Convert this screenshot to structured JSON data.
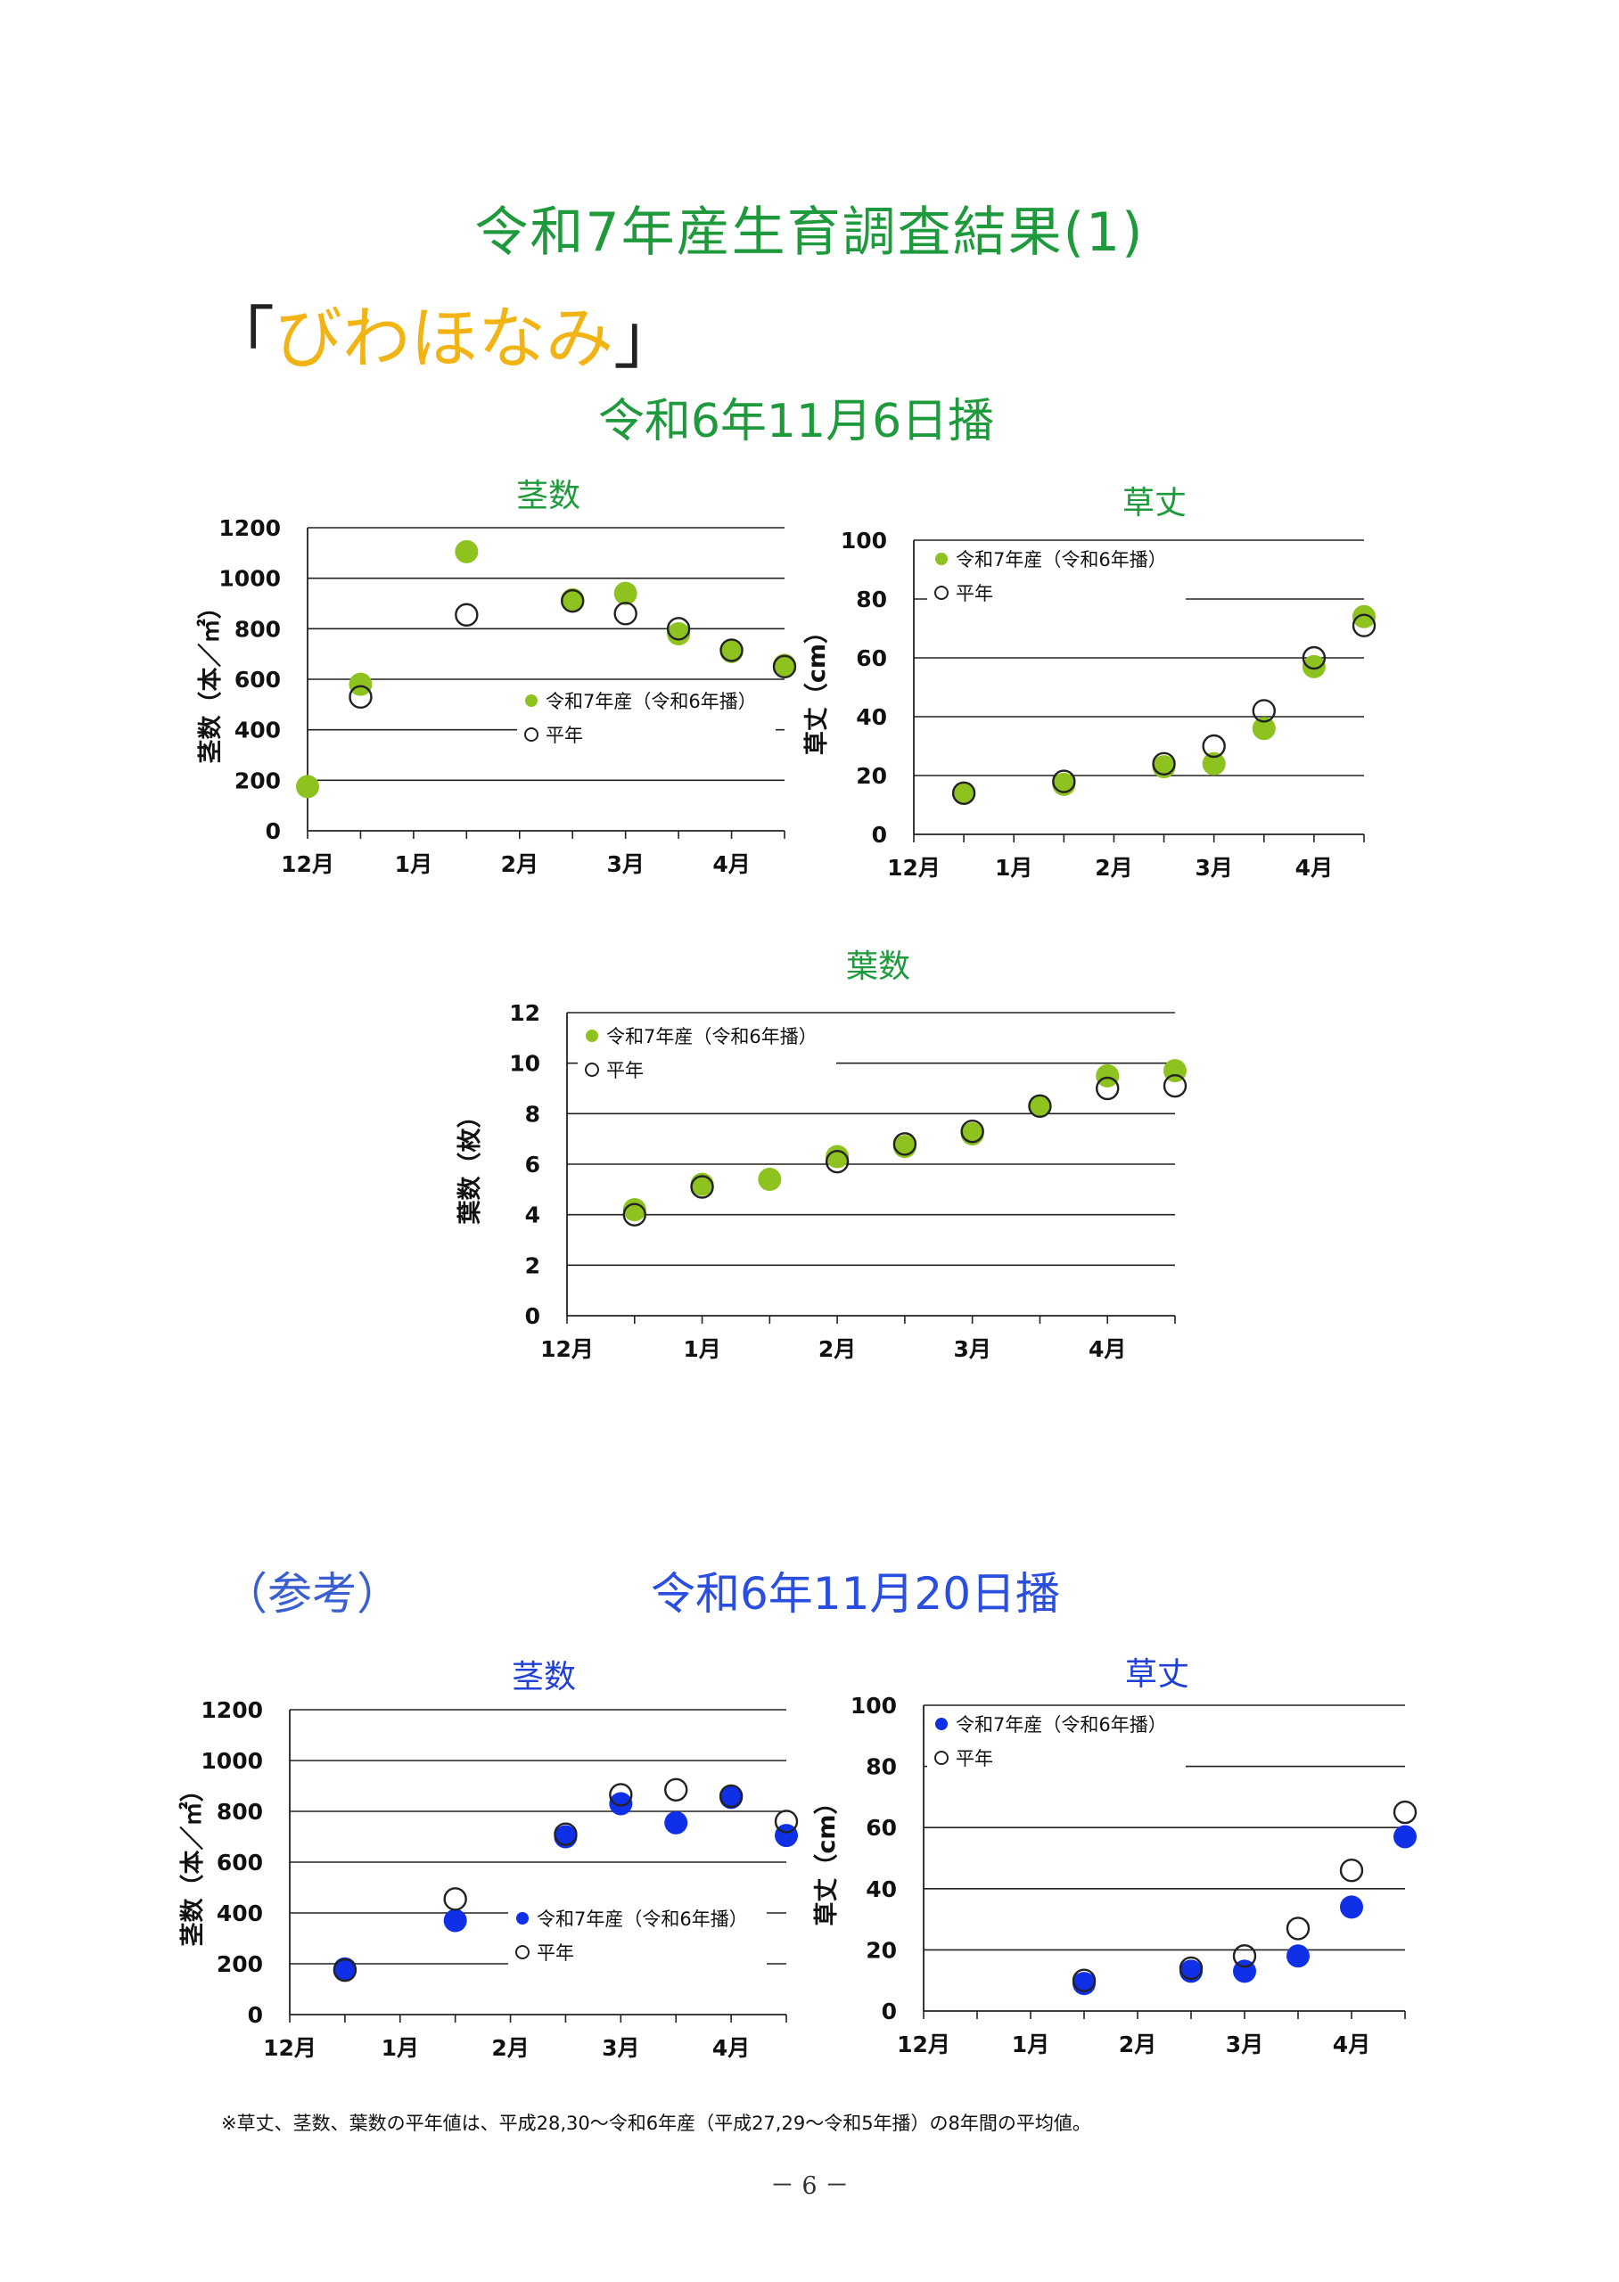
{
  "page": {
    "title": "令和7年産生育調査結果(1)",
    "variety_open": "「",
    "variety_name": "びわほなみ",
    "variety_close": "」",
    "sowing_main": "令和6年11月6日播",
    "reference_label": "（参考）",
    "sowing_reference": "令和6年11月20日播",
    "footnote": "※草丈、茎数、葉数の平年値は、平成28,30～令和6年産（平成27,29～令和5年播）の8年間の平均値。",
    "page_number": "－ 6 －"
  },
  "colors": {
    "title_green": "#1e9a3c",
    "variety_yellow": "#f2b414",
    "series_green": "#8dc21f",
    "series_blue": "#1030e8",
    "title_blue": "#2a4ee0",
    "chart_title_blue": "#1f3fd6"
  },
  "chart_data": [
    {
      "type": "scatter",
      "title": "茎数",
      "ylabel": "茎数（本／㎡）",
      "xticks": [
        "12月",
        "1月",
        "2月",
        "3月",
        "4月"
      ],
      "ylim": [
        0,
        1200
      ],
      "yticks": [
        0,
        200,
        400,
        600,
        800,
        1000,
        1200
      ],
      "grid": true,
      "legend_position": "inside, lower-right",
      "series": [
        {
          "name": "令和7年産（令和6年播）",
          "style": "filled",
          "color": "#8dc21f",
          "x": [
            0,
            0.5,
            1.5,
            2.5,
            3,
            3.5,
            4,
            4.5
          ],
          "y": [
            175,
            580,
            1105,
            915,
            940,
            780,
            710,
            655
          ]
        },
        {
          "name": "平年",
          "style": "open",
          "x": [
            0.5,
            1.5,
            2.5,
            3,
            3.5,
            4,
            4.5
          ],
          "y": [
            530,
            855,
            910,
            860,
            800,
            715,
            650
          ]
        }
      ]
    },
    {
      "type": "scatter",
      "title": "草丈",
      "ylabel": "草丈（cm）",
      "xticks": [
        "12月",
        "1月",
        "2月",
        "3月",
        "4月"
      ],
      "ylim": [
        0,
        100
      ],
      "yticks": [
        0,
        20,
        40,
        60,
        80,
        100
      ],
      "grid": true,
      "legend_position": "top-left",
      "series": [
        {
          "name": "令和7年産（令和6年播）",
          "style": "filled",
          "color": "#8dc21f",
          "x": [
            0.5,
            1.5,
            2.5,
            3,
            3.5,
            4,
            4.5
          ],
          "y": [
            14,
            17,
            23,
            24,
            36,
            57,
            74
          ]
        },
        {
          "name": "平年",
          "style": "open",
          "x": [
            0.5,
            1.5,
            2.5,
            3,
            3.5,
            4,
            4.5
          ],
          "y": [
            14,
            18,
            24,
            30,
            42,
            60,
            71
          ]
        }
      ]
    },
    {
      "type": "scatter",
      "title": "葉数",
      "ylabel": "葉数（枚）",
      "xticks": [
        "12月",
        "1月",
        "2月",
        "3月",
        "4月"
      ],
      "ylim": [
        0,
        12
      ],
      "yticks": [
        0,
        2,
        4,
        6,
        8,
        10,
        12
      ],
      "grid": true,
      "legend_position": "top-left",
      "series": [
        {
          "name": "令和7年産（令和6年播）",
          "style": "filled",
          "color": "#8dc21f",
          "x": [
            0.5,
            1,
            1.5,
            2,
            2.5,
            3,
            3.5,
            4,
            4.5
          ],
          "y": [
            4.2,
            5.2,
            5.4,
            6.3,
            6.7,
            7.2,
            8.3,
            9.5,
            9.7
          ]
        },
        {
          "name": "平年",
          "style": "open",
          "x": [
            0.5,
            1,
            2,
            2.5,
            3,
            3.5,
            4,
            4.5
          ],
          "y": [
            4.0,
            5.1,
            6.1,
            6.8,
            7.3,
            8.3,
            9.0,
            9.1
          ]
        }
      ]
    },
    {
      "type": "scatter",
      "title": "茎数",
      "ylabel": "茎数（本／㎡）",
      "xticks": [
        "12月",
        "1月",
        "2月",
        "3月",
        "4月"
      ],
      "ylim": [
        0,
        1200
      ],
      "yticks": [
        0,
        200,
        400,
        600,
        800,
        1000,
        1200
      ],
      "grid": true,
      "legend_position": "inside, lower-right",
      "series": [
        {
          "name": "令和7年産（令和6年播）",
          "style": "filled",
          "color": "#1030e8",
          "x": [
            0.5,
            1.5,
            2.5,
            3,
            3.5,
            4,
            4.5
          ],
          "y": [
            180,
            370,
            700,
            830,
            755,
            855,
            705
          ]
        },
        {
          "name": "平年",
          "style": "open",
          "x": [
            0.5,
            1.5,
            2.5,
            3,
            3.5,
            4,
            4.5
          ],
          "y": [
            175,
            455,
            710,
            865,
            885,
            860,
            760
          ]
        }
      ]
    },
    {
      "type": "scatter",
      "title": "草丈",
      "ylabel": "草丈（cm）",
      "xticks": [
        "12月",
        "1月",
        "2月",
        "3月",
        "4月"
      ],
      "ylim": [
        0,
        100
      ],
      "yticks": [
        0,
        20,
        40,
        60,
        80,
        100
      ],
      "grid": true,
      "legend_position": "top-left",
      "series": [
        {
          "name": "令和7年産（令和6年播）",
          "style": "filled",
          "color": "#1030e8",
          "x": [
            1.5,
            2.5,
            3,
            3.5,
            4,
            4.5
          ],
          "y": [
            9,
            13,
            13,
            18,
            34,
            57
          ]
        },
        {
          "name": "平年",
          "style": "open",
          "x": [
            1.5,
            2.5,
            3,
            3.5,
            4,
            4.5
          ],
          "y": [
            10,
            14,
            18,
            27,
            46,
            65
          ]
        }
      ]
    }
  ]
}
